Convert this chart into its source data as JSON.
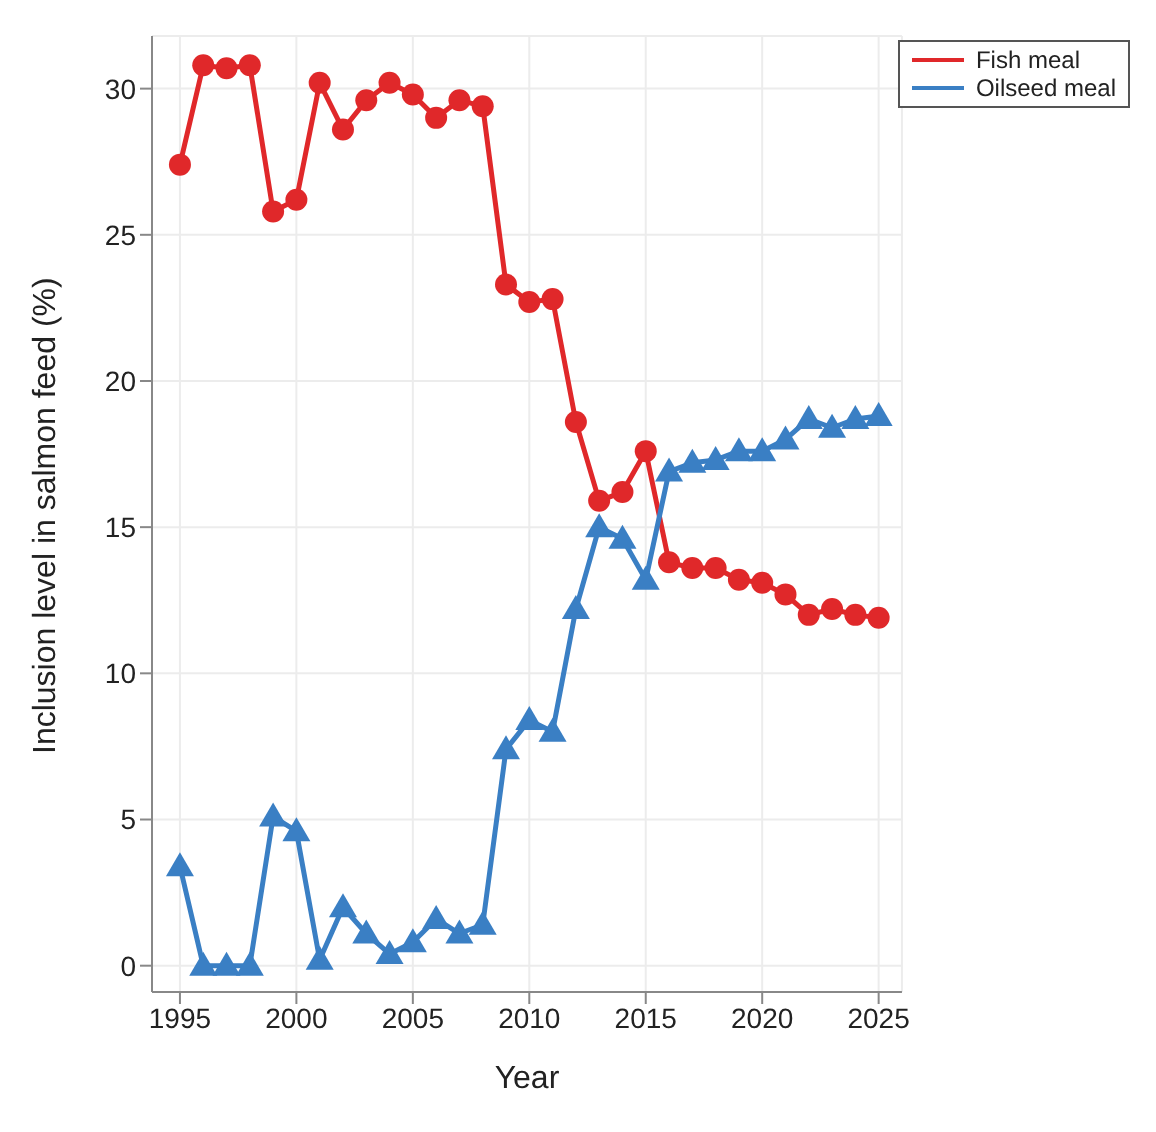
{
  "chart_data": {
    "type": "line",
    "xlabel": "Year",
    "ylabel": "Inclusion level in salmon feed (%)",
    "x": [
      1995,
      1996,
      1997,
      1998,
      1999,
      2000,
      2001,
      2002,
      2003,
      2004,
      2005,
      2006,
      2007,
      2008,
      2009,
      2010,
      2011,
      2012,
      2013,
      2014,
      2015,
      2016,
      2017,
      2018,
      2019,
      2020,
      2021,
      2022,
      2023,
      2024,
      2025
    ],
    "series": [
      {
        "name": "Fish meal",
        "color": "#e0282a",
        "marker": "circle",
        "values": [
          27.4,
          30.8,
          30.7,
          30.8,
          25.8,
          26.2,
          30.2,
          28.6,
          29.6,
          30.2,
          29.8,
          29.0,
          29.6,
          29.4,
          23.3,
          22.7,
          22.8,
          18.6,
          15.9,
          16.2,
          17.6,
          13.8,
          13.6,
          13.6,
          13.2,
          13.1,
          12.7,
          12.0,
          12.2,
          12.0,
          11.9
        ]
      },
      {
        "name": "Oilseed meal",
        "color": "#3a7fc4",
        "marker": "triangle",
        "values": [
          3.4,
          0,
          0,
          0,
          5.1,
          4.6,
          0.2,
          2.0,
          1.1,
          0.4,
          0.8,
          1.6,
          1.1,
          1.4,
          7.4,
          8.4,
          8.0,
          12.2,
          15.0,
          14.6,
          13.2,
          16.9,
          17.2,
          17.3,
          17.6,
          17.6,
          18.0,
          18.7,
          18.4,
          18.7,
          18.8
        ]
      }
    ],
    "xlim": [
      1993.8,
      2026
    ],
    "xticks": [
      1995,
      2000,
      2005,
      2010,
      2015,
      2020,
      2025
    ],
    "ylim": [
      -0.9,
      31.8
    ],
    "yticks": [
      0,
      5,
      10,
      15,
      20,
      25,
      30
    ],
    "grid": true,
    "legend": "top right",
    "line_style": "solid"
  }
}
